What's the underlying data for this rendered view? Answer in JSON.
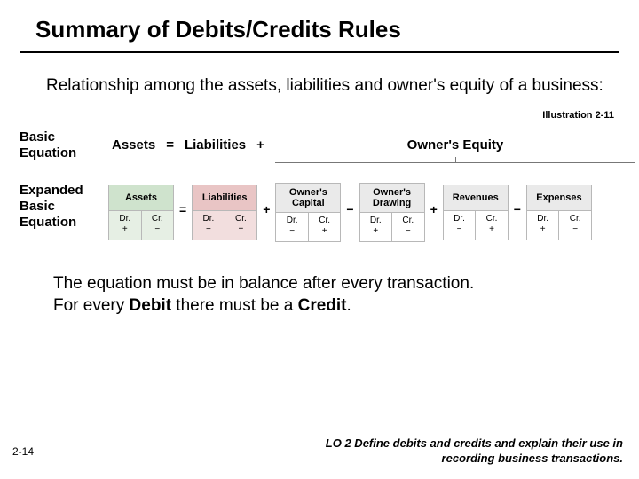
{
  "title": "Summary of Debits/Credits Rules",
  "intro": "Relationship among the assets, liabilities and owner's equity of a business:",
  "illustration_label": "Illustration 2-11",
  "basic": {
    "label": "Basic Equation",
    "assets": "Assets",
    "eq": "=",
    "liabilities": "Liabilities",
    "plus": "+",
    "owners_equity": "Owner's Equity"
  },
  "expanded": {
    "label": "Expanded Basic Equation",
    "ops": {
      "eq": "=",
      "plus": "+",
      "minus": "−"
    },
    "boxes": [
      {
        "name": "Assets",
        "bg": "green",
        "dr_label": "Dr.",
        "dr_sign": "+",
        "cr_label": "Cr.",
        "cr_sign": "−"
      },
      {
        "name": "Liabilities",
        "bg": "red",
        "dr_label": "Dr.",
        "dr_sign": "−",
        "cr_label": "Cr.",
        "cr_sign": "+"
      },
      {
        "name": "Owner's Capital",
        "bg": "gray",
        "dr_label": "Dr.",
        "dr_sign": "−",
        "cr_label": "Cr.",
        "cr_sign": "+"
      },
      {
        "name": "Owner's Drawing",
        "bg": "gray",
        "dr_label": "Dr.",
        "dr_sign": "+",
        "cr_label": "Cr.",
        "cr_sign": "−"
      },
      {
        "name": "Revenues",
        "bg": "gray",
        "dr_label": "Dr.",
        "dr_sign": "−",
        "cr_label": "Cr.",
        "cr_sign": "+"
      },
      {
        "name": "Expenses",
        "bg": "gray",
        "dr_label": "Dr.",
        "dr_sign": "+",
        "cr_label": "Cr.",
        "cr_sign": "−"
      }
    ],
    "operator_sequence": [
      "=",
      "+",
      "−",
      "+",
      "−"
    ]
  },
  "footer": {
    "line1": "The equation must be in balance after every transaction.",
    "line2_pre": "For every ",
    "line2_bold1": "Debit",
    "line2_mid": " there must be a ",
    "line2_bold2": "Credit",
    "line2_post": "."
  },
  "page_number": "2-14",
  "learning_objective": "LO 2  Define debits and credits and explain their use in recording business transactions.",
  "colors": {
    "rule": "#000000",
    "box_border": "#b8b8b8",
    "box_gray_head": "#eaeaea",
    "box_green_head": "#cfe3cd",
    "box_green_body": "#e6efe4",
    "box_red_head": "#e9c5c5",
    "box_red_body": "#f2dede"
  }
}
